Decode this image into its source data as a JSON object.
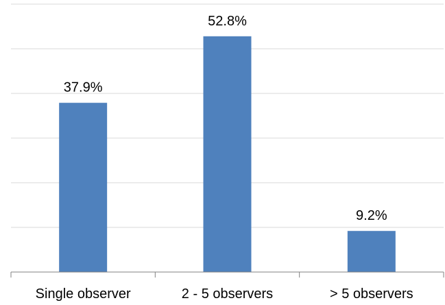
{
  "chart_data": {
    "type": "bar",
    "categories": [
      "Single observer",
      "2 - 5 observers",
      "> 5 observers"
    ],
    "values": [
      37.9,
      52.8,
      9.2
    ],
    "data_labels": [
      "37.9%",
      "52.8%",
      "9.2%"
    ],
    "title": "",
    "xlabel": "",
    "ylabel": "",
    "ylim": [
      0,
      60
    ],
    "y_axis_visible": false,
    "grid": true,
    "legend": "none",
    "bar_color": "#4f81bd",
    "grid_color": "#d9d9d9",
    "axis_color": "#808080"
  }
}
